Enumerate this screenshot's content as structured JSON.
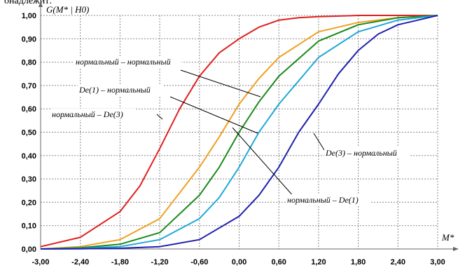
{
  "top_text": "онадлежит:",
  "chart_data": {
    "type": "line",
    "ylabel": "G(M* | H0)",
    "xlabel": "M*",
    "xlim": [
      -3.0,
      3.0
    ],
    "ylim": [
      0.0,
      1.0
    ],
    "xticks": [
      "-3,00",
      "-2,40",
      "-1,80",
      "-1,20",
      "-0,60",
      "0,00",
      "0,60",
      "1,20",
      "1,80",
      "2,40",
      "3,00"
    ],
    "yticks": [
      "0,00",
      "0,10",
      "0,20",
      "0,30",
      "0,40",
      "0,50",
      "0,60",
      "0,70",
      "0,80",
      "0,90",
      "1,00"
    ],
    "grid": true,
    "series": [
      {
        "name": "нормальный – De(3)",
        "color": "#e02020",
        "x": [
          -3.0,
          -2.4,
          -1.8,
          -1.5,
          -1.2,
          -0.9,
          -0.6,
          -0.3,
          0.0,
          0.3,
          0.6,
          0.9,
          1.2,
          1.8,
          2.4,
          3.0
        ],
        "y": [
          0.01,
          0.05,
          0.16,
          0.27,
          0.43,
          0.6,
          0.74,
          0.84,
          0.9,
          0.95,
          0.98,
          0.99,
          0.995,
          1.0,
          1.0,
          1.0
        ]
      },
      {
        "name": "De(1) – нормальный",
        "color": "#f0a020",
        "x": [
          -3.0,
          -2.4,
          -1.8,
          -1.2,
          -0.6,
          -0.3,
          0.0,
          0.3,
          0.6,
          1.2,
          1.8,
          2.4,
          3.0
        ],
        "y": [
          0.0,
          0.01,
          0.04,
          0.13,
          0.35,
          0.48,
          0.62,
          0.73,
          0.82,
          0.93,
          0.97,
          0.99,
          1.0
        ]
      },
      {
        "name": "нормальный – нормальный",
        "color": "#1a8a1a",
        "x": [
          -3.0,
          -2.4,
          -1.8,
          -1.2,
          -0.6,
          -0.3,
          0.0,
          0.3,
          0.6,
          1.2,
          1.8,
          2.4,
          3.0
        ],
        "y": [
          0.0,
          0.005,
          0.02,
          0.07,
          0.23,
          0.35,
          0.5,
          0.63,
          0.74,
          0.89,
          0.96,
          0.99,
          1.0
        ]
      },
      {
        "name": "нормальный – De(1)",
        "color": "#20a8d8",
        "x": [
          -3.0,
          -2.4,
          -1.8,
          -1.2,
          -0.6,
          -0.3,
          0.0,
          0.3,
          0.6,
          1.2,
          1.8,
          2.4,
          3.0
        ],
        "y": [
          0.0,
          0.003,
          0.01,
          0.04,
          0.13,
          0.22,
          0.35,
          0.5,
          0.62,
          0.82,
          0.93,
          0.98,
          1.0
        ]
      },
      {
        "name": "De(3) – нормальный",
        "color": "#2020b0",
        "x": [
          -3.0,
          -2.4,
          -1.8,
          -1.2,
          -0.6,
          0.0,
          0.3,
          0.6,
          0.9,
          1.2,
          1.5,
          1.8,
          2.1,
          2.4,
          2.7,
          3.0
        ],
        "y": [
          0.0,
          0.001,
          0.003,
          0.01,
          0.04,
          0.14,
          0.23,
          0.35,
          0.5,
          0.62,
          0.75,
          0.85,
          0.92,
          0.96,
          0.98,
          1.0
        ]
      }
    ],
    "annotations": [
      {
        "text": "нормальный – нормальный",
        "target_series": 2,
        "x": 0.6,
        "y": 0.73
      },
      {
        "text": "De(1) – нормальный",
        "target_series": 1,
        "x": 0.0,
        "y": 0.58
      },
      {
        "text": "нормальный – De(3)",
        "target_series": 0,
        "x": -1.5,
        "y": 0.28
      },
      {
        "text": "De(3) – нормальный",
        "target_series": 4,
        "x": 1.2,
        "y": 0.65
      },
      {
        "text": "нормальный – De(1)",
        "target_series": 3,
        "x": -0.3,
        "y": 0.73
      }
    ]
  }
}
